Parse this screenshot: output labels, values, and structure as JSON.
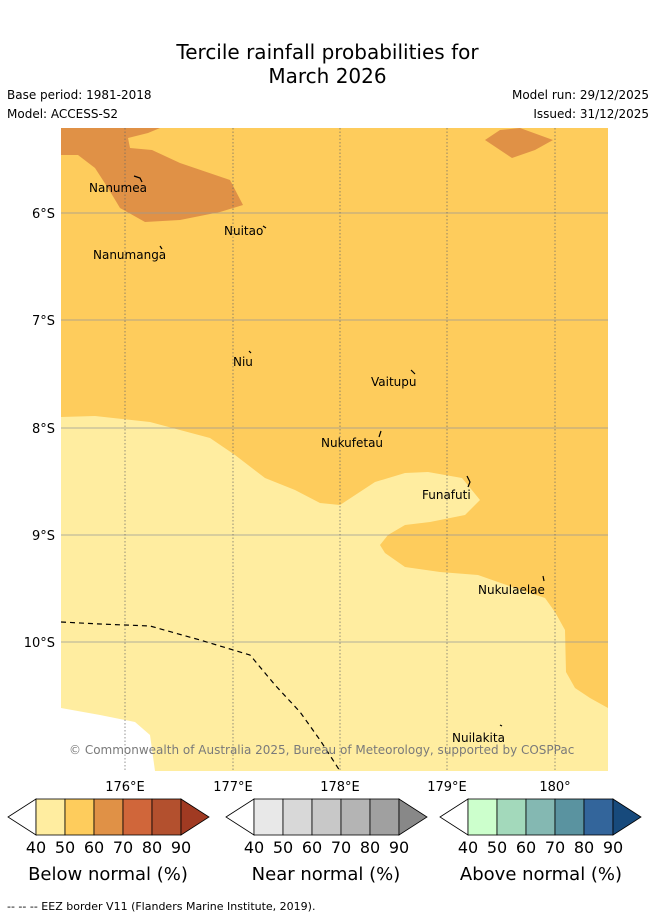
{
  "title": {
    "line1": "Tercile rainfall probabilities for",
    "line2": "March 2026"
  },
  "meta": {
    "base_period": "Base period: 1981-2018",
    "model": "Model: ACCESS-S2",
    "model_run": "Model run: 29/12/2025",
    "issued": "Issued: 31/12/2025"
  },
  "map": {
    "lat_labels": [
      "6°S",
      "7°S",
      "8°S",
      "9°S",
      "10°S"
    ],
    "lon_labels": [
      "176°E",
      "177°E",
      "178°E",
      "179°E",
      "180°"
    ],
    "islands": [
      "Nanumea",
      "Nuitao",
      "Nanumanga",
      "Niu",
      "Vaitupu",
      "Nukufetau",
      "Funafuti",
      "Nukulaelae",
      "Nuilakita"
    ],
    "copyright": "© Commonwealth of Australia 2025, Bureau of Meteorology, supported by COSPPac",
    "region_categories": [
      "Below normal 40-50%",
      "Below normal 50-60%",
      "Below normal 60-70%"
    ]
  },
  "colorbars": [
    {
      "title": "Below normal (%)",
      "ticks": [
        "40",
        "50",
        "60",
        "70",
        "80",
        "90"
      ],
      "colors": [
        "#ffffff",
        "#ffeda0",
        "#fecc5c",
        "#e09146",
        "#d0663a",
        "#b3502e",
        "#a03a22"
      ]
    },
    {
      "title": "Near normal (%)",
      "ticks": [
        "40",
        "50",
        "60",
        "70",
        "80",
        "90"
      ],
      "colors": [
        "#ffffff",
        "#e8e8e8",
        "#d8d8d8",
        "#c8c8c8",
        "#b4b4b4",
        "#a0a0a0",
        "#888888"
      ]
    },
    {
      "title": "Above normal (%)",
      "ticks": [
        "40",
        "50",
        "60",
        "70",
        "80",
        "90"
      ],
      "colors": [
        "#ffffff",
        "#ccffcc",
        "#a3d9bb",
        "#84b8b2",
        "#5a93a0",
        "#33659b",
        "#174a7c"
      ]
    }
  ],
  "footer": "--  --  -- EEZ border V11 (Flanders Marine Institute, 2019)."
}
